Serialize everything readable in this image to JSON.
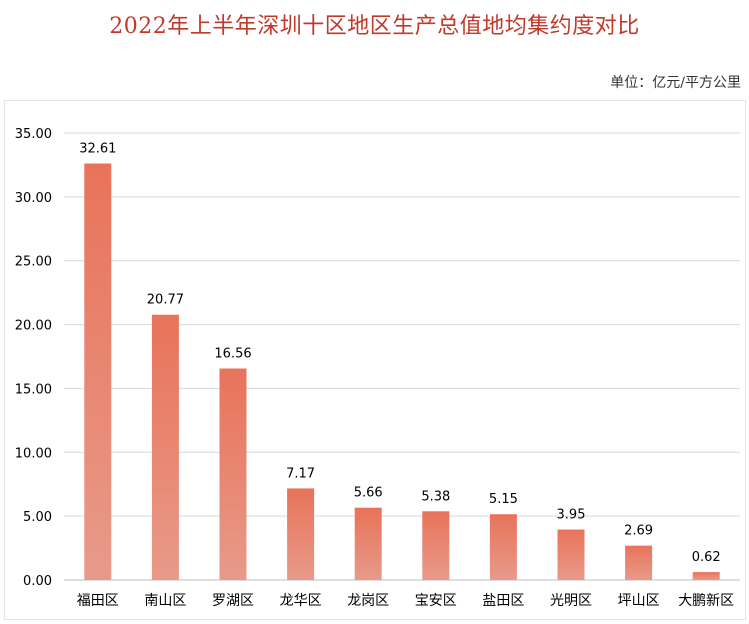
{
  "title": "2022年上半年深圳十区地区生产总值地均集约度对比",
  "unit_label": "单位：亿元/平方公里",
  "colors": {
    "title": "#c0392b",
    "bar_top": "#e8735a",
    "bar_bottom": "#e89a8a",
    "grid": "#d9d9d9"
  },
  "chart_data": {
    "type": "bar",
    "categories": [
      "福田区",
      "南山区",
      "罗湖区",
      "龙华区",
      "龙岗区",
      "宝安区",
      "盐田区",
      "光明区",
      "坪山区",
      "大鹏新区"
    ],
    "values": [
      32.61,
      20.77,
      16.56,
      7.17,
      5.66,
      5.38,
      5.15,
      3.95,
      2.69,
      0.62
    ],
    "value_labels": [
      "32.61",
      "20.77",
      "16.56",
      "7.17",
      "5.66",
      "5.38",
      "5.15",
      "3.95",
      "2.69",
      "0.62"
    ],
    "ylim": [
      0,
      35
    ],
    "yticks": [
      0,
      5,
      10,
      15,
      20,
      25,
      30,
      35
    ],
    "ytick_labels": [
      "0.00",
      "5.00",
      "10.00",
      "15.00",
      "20.00",
      "25.00",
      "30.00",
      "35.00"
    ],
    "grid": true,
    "legend": "none"
  }
}
